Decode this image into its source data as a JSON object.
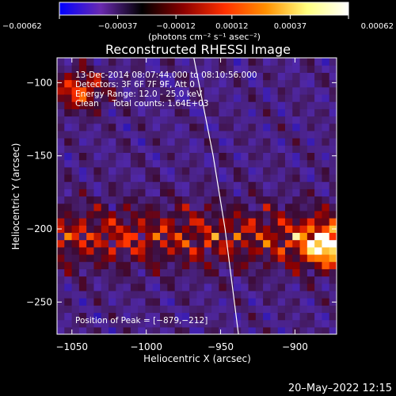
{
  "chart_data": {
    "type": "heatmap",
    "title": "Reconstructed RHESSI Image",
    "xlabel": "Heliocentric X (arcsec)",
    "ylabel": "Heliocentric Y (arcsec)",
    "xlim": [
      -1060,
      -872
    ],
    "ylim": [
      -272,
      -83
    ],
    "x_ticks": [
      -1050,
      -1000,
      -950,
      -900
    ],
    "y_ticks": [
      -250,
      -200,
      -150,
      -100
    ],
    "x_tick_labels": [
      "−1050",
      "−1000",
      "−950",
      "−900"
    ],
    "y_tick_labels": [
      "−250",
      "−200",
      "−150",
      "−100"
    ],
    "colorbar": {
      "range": [
        -0.00062,
        0.00062
      ],
      "ticks": [
        -0.00062,
        -0.00037,
        -0.00012,
        0.00012,
        0.00037,
        0.00062
      ],
      "tick_labels": [
        "−0.00062",
        "−0.00037",
        "−0.00012",
        "0.00012",
        "0.00037",
        "0.00062"
      ],
      "unit_label": "(photons cm⁻² s⁻¹ asec⁻²)",
      "colors": [
        "#0000ff",
        "#6a2ab0",
        "#000000",
        "#8b0000",
        "#ff3000",
        "#ff9000",
        "#ffff80",
        "#ffffff"
      ]
    },
    "info_lines": [
      "13-Dec-2014 08:07:44.000 to 08:10:56.000",
      "Detectors: 3F 6F 7F 9F, Att 0",
      "Energy Range: 12.0 - 25.0 keV",
      "Clean     Total counts: 1.64E+03"
    ],
    "peak_label": "Position of Peak = [−879,−212]",
    "peak": [
      -879,
      -212
    ],
    "limb": [
      [
        -968,
        -83
      ],
      [
        -955,
        -150
      ],
      [
        -947,
        -200
      ],
      [
        -938,
        -272
      ]
    ],
    "grid": false,
    "grid_cells": 38
  },
  "footer": {
    "date": "20–May–2022 12:15"
  }
}
